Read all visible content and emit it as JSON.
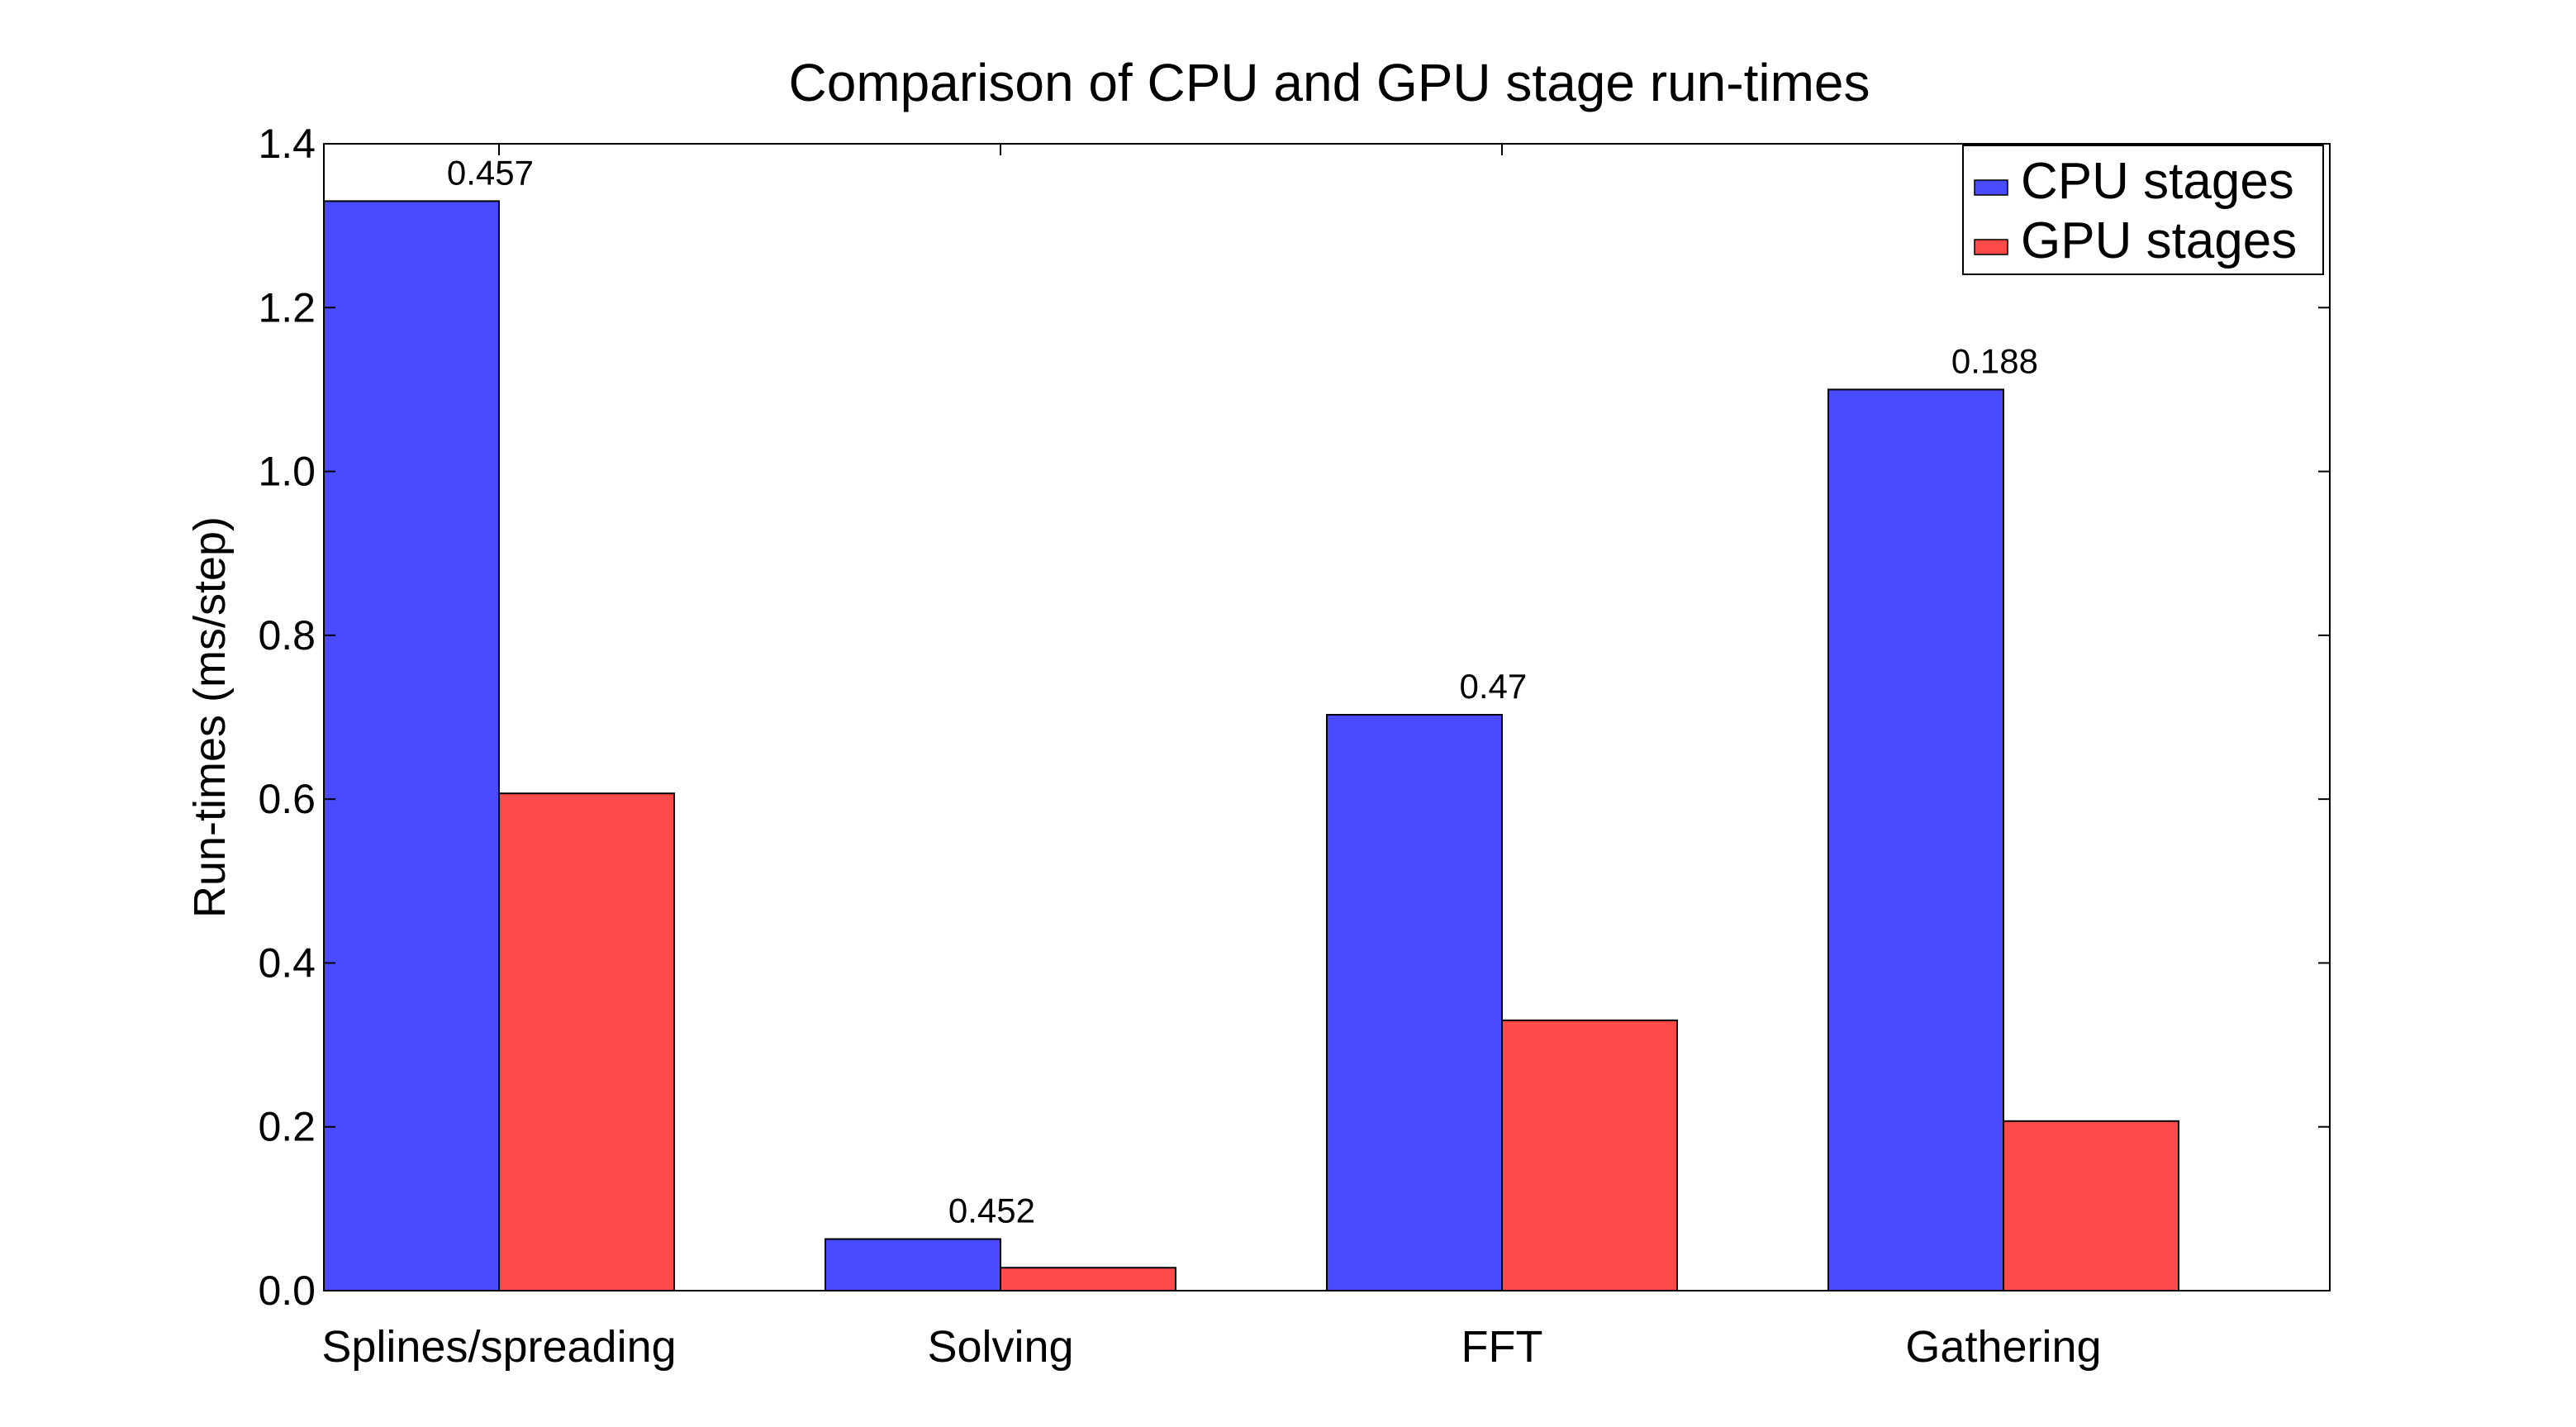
{
  "chart_data": {
    "type": "bar",
    "title": "Comparison of CPU and GPU stage run-times",
    "ylabel": "Run-times (ms/step)",
    "xlabel": "",
    "ylim": [
      0,
      1.4
    ],
    "yticks": [
      "0.0",
      "0.2",
      "0.4",
      "0.6",
      "0.8",
      "1.0",
      "1.2",
      "1.4"
    ],
    "categories": [
      "Splines/spreading",
      "Solving",
      "FFT",
      "Gathering"
    ],
    "series": [
      {
        "name": "CPU stages",
        "color": "#4a4aff",
        "values": [
          1.33,
          0.063,
          0.703,
          1.1
        ]
      },
      {
        "name": "GPU stages",
        "color": "#ff4a4a",
        "values": [
          0.607,
          0.028,
          0.33,
          0.207
        ]
      }
    ],
    "data_labels": [
      "0.457",
      "0.452",
      "0.47",
      "0.188"
    ],
    "legend": "top-right",
    "grid": false
  }
}
